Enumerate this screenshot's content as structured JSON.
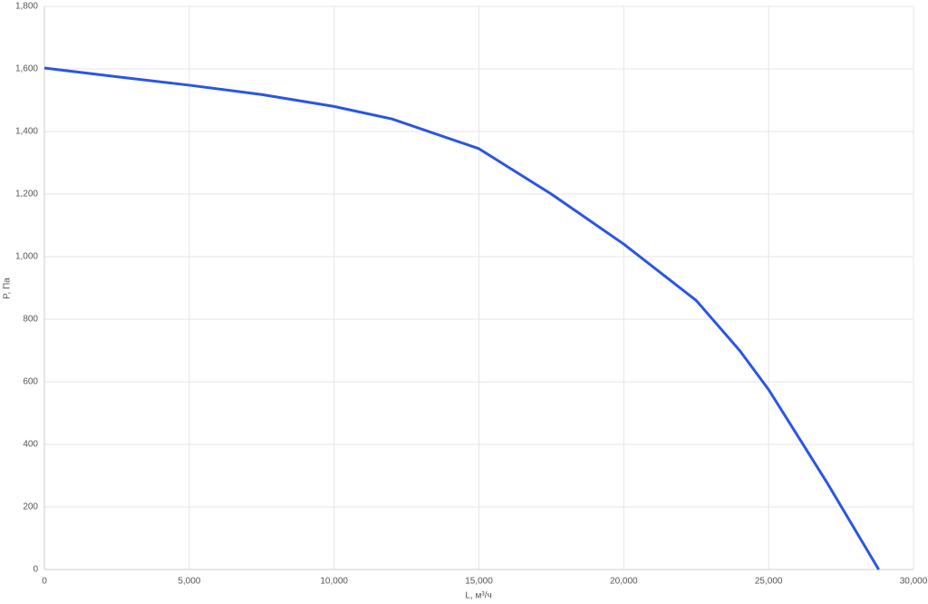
{
  "chart_data": {
    "type": "line",
    "xlabel": "L, м³/ч",
    "ylabel": "P, Па",
    "x": [
      0,
      2500,
      5000,
      7500,
      10000,
      12000,
      15000,
      17500,
      20000,
      22500,
      24000,
      25000,
      27000,
      28800
    ],
    "series": [
      {
        "name": "P",
        "color": "#2a55e5",
        "values": [
          1603,
          1575,
          1548,
          1518,
          1480,
          1440,
          1345,
          1200,
          1040,
          860,
          700,
          575,
          280,
          0
        ]
      }
    ],
    "xlim": [
      0,
      30000
    ],
    "xticks": [
      0,
      {
        "value": 5000,
        "label": "5,000"
      },
      {
        "value": 10000,
        "label": "10,000"
      },
      {
        "value": 15000,
        "label": "15,000"
      },
      {
        "value": 20000,
        "label": "20,000"
      },
      {
        "value": 25000,
        "label": "25,000"
      },
      {
        "value": 30000,
        "label": "30,000"
      }
    ],
    "ylim": [
      0,
      1800
    ],
    "yticks": [
      0,
      200,
      400,
      600,
      800,
      {
        "value": 1000,
        "label": "1,000"
      },
      {
        "value": 1200,
        "label": "1,200"
      },
      {
        "value": 1400,
        "label": "1,400"
      },
      {
        "value": 1600,
        "label": "1,600"
      },
      {
        "value": 1800,
        "label": "1,800"
      }
    ],
    "grid": true
  }
}
